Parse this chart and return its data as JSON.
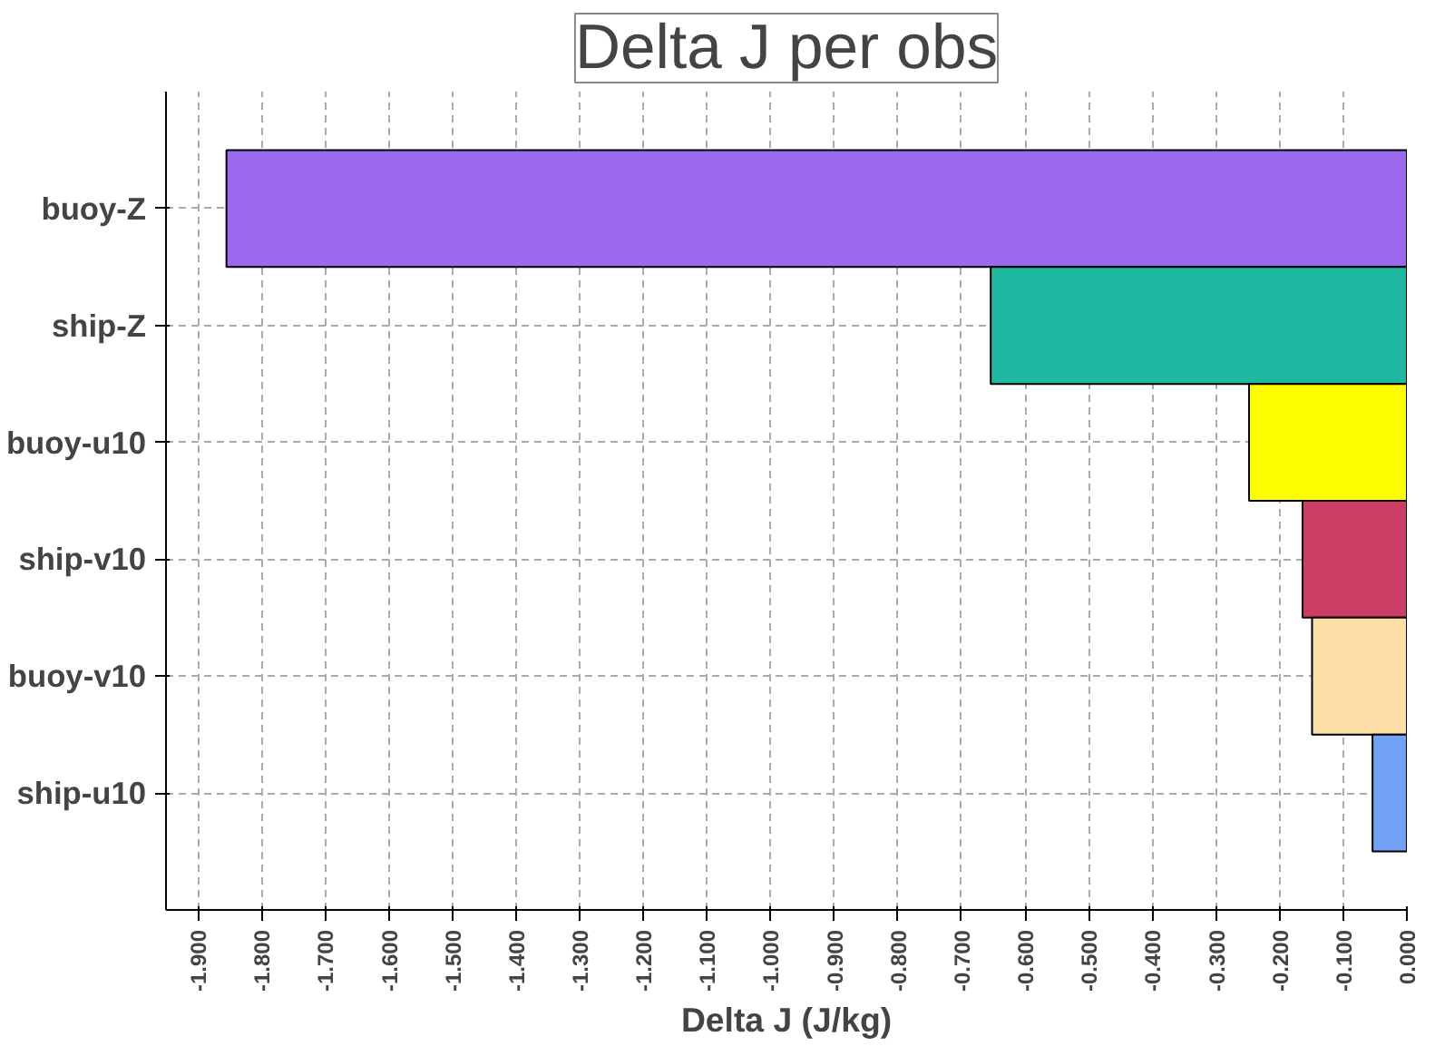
{
  "chart_data": {
    "type": "bar",
    "orientation": "horizontal",
    "title": "Delta J per obs",
    "xlabel": "Delta J (J/kg)",
    "categories": [
      "buoy-Z",
      "ship-Z",
      "buoy-u10",
      "ship-v10",
      "buoy-v10",
      "ship-u10"
    ],
    "values": [
      -1.855,
      -0.654,
      -0.248,
      -0.164,
      -0.149,
      -0.054
    ],
    "colors": [
      "#9b69ee",
      "#1fb8a0",
      "#ffff00",
      "#cc3d66",
      "#fde0a8",
      "#72a2f5"
    ],
    "xlim": [
      -1.95,
      0.0
    ],
    "xticks": [
      {
        "value": -1.9,
        "label": "-1.900"
      },
      {
        "value": -1.8,
        "label": "-1.800"
      },
      {
        "value": -1.7,
        "label": "-1.700"
      },
      {
        "value": -1.6,
        "label": "-1.600"
      },
      {
        "value": -1.5,
        "label": "-1.500"
      },
      {
        "value": -1.4,
        "label": "-1.400"
      },
      {
        "value": -1.3,
        "label": "-1.300"
      },
      {
        "value": -1.2,
        "label": "-1.200"
      },
      {
        "value": -1.1,
        "label": "-1.100"
      },
      {
        "value": -1.0,
        "label": "-1.000"
      },
      {
        "value": -0.9,
        "label": "-0.900"
      },
      {
        "value": -0.8,
        "label": "-0.800"
      },
      {
        "value": -0.7,
        "label": "-0.700"
      },
      {
        "value": -0.6,
        "label": "-0.600"
      },
      {
        "value": -0.5,
        "label": "-0.500"
      },
      {
        "value": -0.4,
        "label": "-0.400"
      },
      {
        "value": -0.3,
        "label": "-0.300"
      },
      {
        "value": -0.2,
        "label": "-0.200"
      },
      {
        "value": -0.1,
        "label": "-0.100"
      },
      {
        "value": 0.0,
        "label": "0.000"
      }
    ],
    "grid": true
  }
}
